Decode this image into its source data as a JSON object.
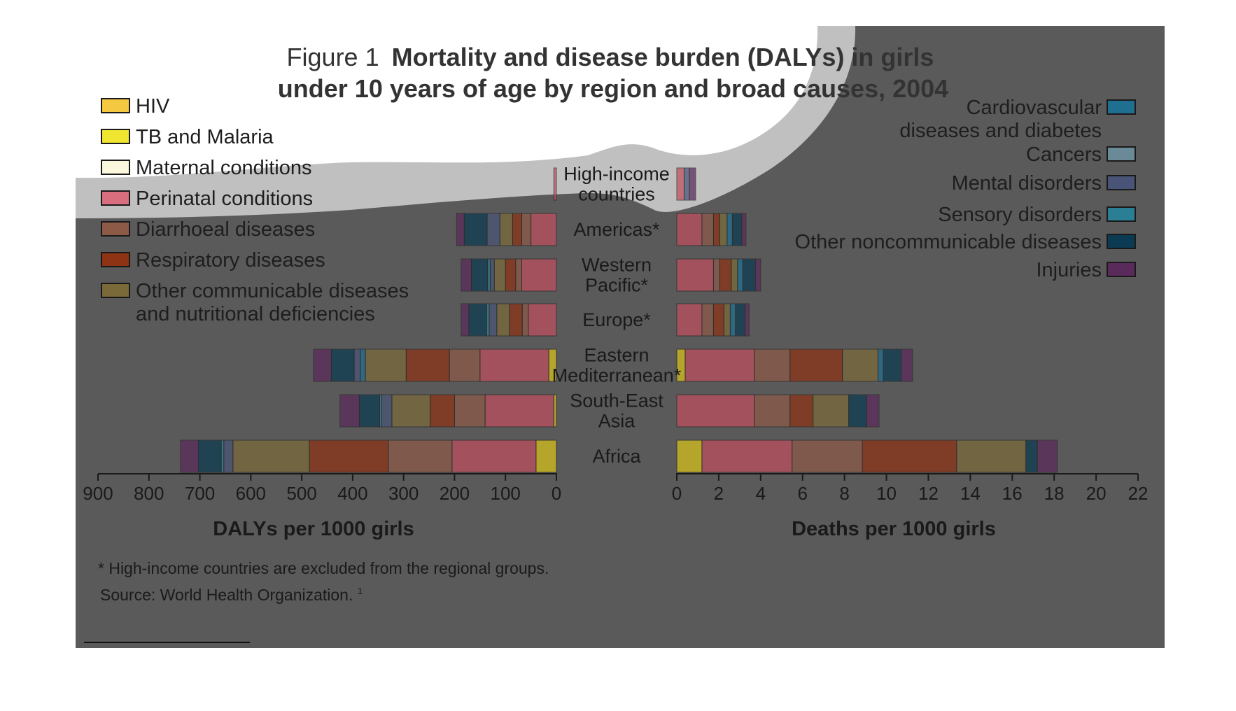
{
  "chart_data": {
    "type": "bar",
    "title_prefix": "Figure 1",
    "title_line1": "Mortality and disease burden (DALYs) in girls",
    "title_line2": "under 10 years of age by region and broad causes, 2004",
    "regions": [
      {
        "key": "high-income",
        "lines": [
          "High-income",
          "countries"
        ]
      },
      {
        "key": "americas",
        "lines": [
          "Americas*"
        ]
      },
      {
        "key": "western-pacific",
        "lines": [
          "Western",
          "Pacific*"
        ]
      },
      {
        "key": "europe",
        "lines": [
          "Europe*"
        ]
      },
      {
        "key": "eastern-mediterranean",
        "lines": [
          "Eastern",
          "Mediterranean*"
        ]
      },
      {
        "key": "south-east-asia",
        "lines": [
          "South-East",
          "Asia"
        ]
      },
      {
        "key": "africa",
        "lines": [
          "Africa"
        ]
      }
    ],
    "causes": [
      {
        "key": "hiv",
        "color": "#f5c842"
      },
      {
        "key": "tb-malaria",
        "color": "#d8c318"
      },
      {
        "key": "maternal",
        "color": "#f6f1c8"
      },
      {
        "key": "perinatal",
        "color": "#c0505f"
      },
      {
        "key": "diarrhoeal",
        "color": "#8e5a48"
      },
      {
        "key": "respiratory",
        "color": "#8e3314"
      },
      {
        "key": "other-communicable",
        "color": "#7a6a3a"
      },
      {
        "key": "cardiovascular",
        "color": "#1f6f90"
      },
      {
        "key": "cancers",
        "color": "#6a8a98"
      },
      {
        "key": "mental",
        "color": "#4a5478"
      },
      {
        "key": "sensory",
        "color": "#2a7f95"
      },
      {
        "key": "other-ncd",
        "color": "#0a3b52"
      },
      {
        "key": "injuries",
        "color": "#5a2a5a"
      }
    ],
    "dalys": {
      "label": "DALYs per 1000 girls",
      "xlim": [
        0,
        900
      ],
      "ticks": [
        900,
        800,
        700,
        600,
        500,
        400,
        300,
        200,
        100,
        0
      ],
      "series": [
        [
          0,
          0,
          0,
          5,
          0,
          0,
          0,
          0,
          0,
          0,
          0,
          0,
          0
        ],
        [
          0,
          0,
          0,
          50,
          18,
          18,
          25,
          0,
          0,
          25,
          0,
          45,
          15
        ],
        [
          0,
          0,
          0,
          68,
          12,
          20,
          22,
          0,
          0,
          8,
          5,
          32,
          20
        ],
        [
          0,
          0,
          0,
          55,
          12,
          25,
          25,
          0,
          0,
          15,
          5,
          35,
          15
        ],
        [
          0,
          15,
          0,
          135,
          60,
          85,
          80,
          10,
          0,
          12,
          0,
          45,
          35
        ],
        [
          0,
          5,
          0,
          135,
          60,
          48,
          75,
          0,
          0,
          20,
          4,
          40,
          38
        ],
        [
          0,
          40,
          0,
          165,
          125,
          155,
          150,
          0,
          0,
          18,
          5,
          45,
          35
        ]
      ]
    },
    "deaths": {
      "label": "Deaths per 1000 girls",
      "xlim": [
        0,
        22
      ],
      "ticks": [
        0,
        2,
        4,
        6,
        8,
        10,
        12,
        14,
        16,
        18,
        20,
        22
      ],
      "series": [
        [
          0,
          0,
          0,
          0.35,
          0,
          0,
          0,
          0,
          0,
          0.25,
          0,
          0,
          0.3
        ],
        [
          0,
          0,
          0,
          1.2,
          0.55,
          0.3,
          0.35,
          0.25,
          0,
          0,
          0,
          0.45,
          0.2
        ],
        [
          0,
          0,
          0,
          1.75,
          0.3,
          0.55,
          0.3,
          0.25,
          0,
          0,
          0,
          0.6,
          0.25
        ],
        [
          0,
          0,
          0,
          1.2,
          0.55,
          0.5,
          0.3,
          0.25,
          0,
          0,
          0,
          0.45,
          0.2
        ],
        [
          0,
          0.4,
          0,
          3.3,
          1.7,
          2.5,
          1.7,
          0.25,
          0,
          0,
          0,
          0.85,
          0.55
        ],
        [
          0,
          0,
          0,
          3.7,
          1.7,
          1.1,
          1.7,
          0,
          0,
          0,
          0,
          0.85,
          0.6
        ],
        [
          0,
          1.2,
          0,
          4.3,
          3.35,
          4.5,
          3.3,
          0,
          0,
          0,
          0,
          0.55,
          0.95
        ]
      ]
    },
    "legend_left": [
      {
        "lines": [
          "HIV"
        ],
        "color": "#f5c842"
      },
      {
        "lines": [
          "TB and Malaria"
        ],
        "color": "#f0e632"
      },
      {
        "lines": [
          "Maternal conditions"
        ],
        "color": "#fbf7dc"
      },
      {
        "lines": [
          "Perinatal conditions"
        ],
        "color": "#d96f7e"
      },
      {
        "lines": [
          "Diarrhoeal diseases"
        ],
        "color": "#8e5a48"
      },
      {
        "lines": [
          "Respiratory diseases"
        ],
        "color": "#8e3314"
      },
      {
        "lines": [
          "Other communicable diseases",
          "and nutritional deficiencies"
        ],
        "color": "#7a6a3a"
      }
    ],
    "legend_right": [
      {
        "lines": [
          "Cardiovascular",
          "diseases and diabetes"
        ],
        "color": "#1f6f90"
      },
      {
        "lines": [
          "Cancers"
        ],
        "color": "#6a8a98"
      },
      {
        "lines": [
          "Mental disorders"
        ],
        "color": "#4a5478"
      },
      {
        "lines": [
          "Sensory disorders"
        ],
        "color": "#2a7f95"
      },
      {
        "lines": [
          "Other noncommunicable diseases"
        ],
        "color": "#0a3b52"
      },
      {
        "lines": [
          "Injuries"
        ],
        "color": "#5a2a5a"
      }
    ],
    "footnote": "* High-income countries are excluded from the regional groups.",
    "source": "Source: World Health Organization.",
    "source_ref": "1"
  }
}
